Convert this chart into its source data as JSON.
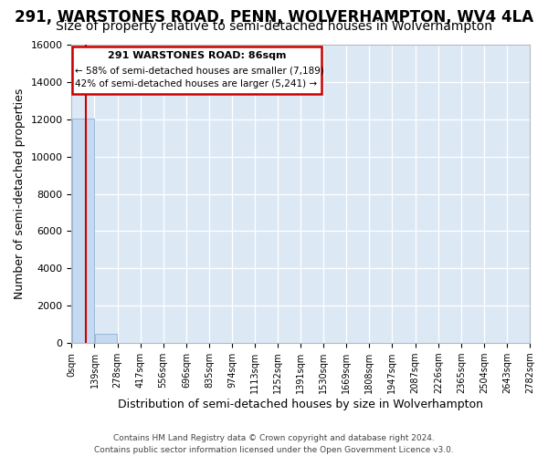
{
  "title": "291, WARSTONES ROAD, PENN, WOLVERHAMPTON, WV4 4LA",
  "subtitle": "Size of property relative to semi-detached houses in Wolverhampton",
  "property_size": 86,
  "bar_color": "#c5d9f0",
  "bar_edge_color": "#9ab8d8",
  "property_line_color": "#cc0000",
  "ylabel": "Number of semi-detached properties",
  "xlabel": "Distribution of semi-detached houses by size in Wolverhampton",
  "ylim": [
    0,
    16000
  ],
  "yticks": [
    0,
    2000,
    4000,
    6000,
    8000,
    10000,
    12000,
    14000,
    16000
  ],
  "bin_edges": [
    0,
    139,
    278,
    417,
    556,
    696,
    835,
    974,
    1113,
    1252,
    1391,
    1530,
    1669,
    1808,
    1947,
    2087,
    2226,
    2365,
    2504,
    2643,
    2782
  ],
  "bin_labels": [
    "0sqm",
    "139sqm",
    "278sqm",
    "417sqm",
    "556sqm",
    "696sqm",
    "835sqm",
    "974sqm",
    "1113sqm",
    "1252sqm",
    "1391sqm",
    "1530sqm",
    "1669sqm",
    "1808sqm",
    "1947sqm",
    "2087sqm",
    "2226sqm",
    "2365sqm",
    "2504sqm",
    "2643sqm",
    "2782sqm"
  ],
  "bar_heights": [
    12050,
    500,
    0,
    0,
    0,
    0,
    0,
    0,
    0,
    0,
    0,
    0,
    0,
    0,
    0,
    0,
    0,
    0,
    0,
    0
  ],
  "annotation_title": "291 WARSTONES ROAD: 86sqm",
  "annotation_line1": "← 58% of semi-detached houses are smaller (7,189)",
  "annotation_line2": "42% of semi-detached houses are larger (5,241) →",
  "footer_line1": "Contains HM Land Registry data © Crown copyright and database right 2024.",
  "footer_line2": "Contains public sector information licensed under the Open Government Licence v3.0.",
  "fig_bg_color": "#ffffff",
  "plot_bg_color": "#dce9f5",
  "grid_color": "#ffffff",
  "title_fontsize": 12,
  "subtitle_fontsize": 10,
  "ylabel_fontsize": 9,
  "xlabel_fontsize": 9
}
